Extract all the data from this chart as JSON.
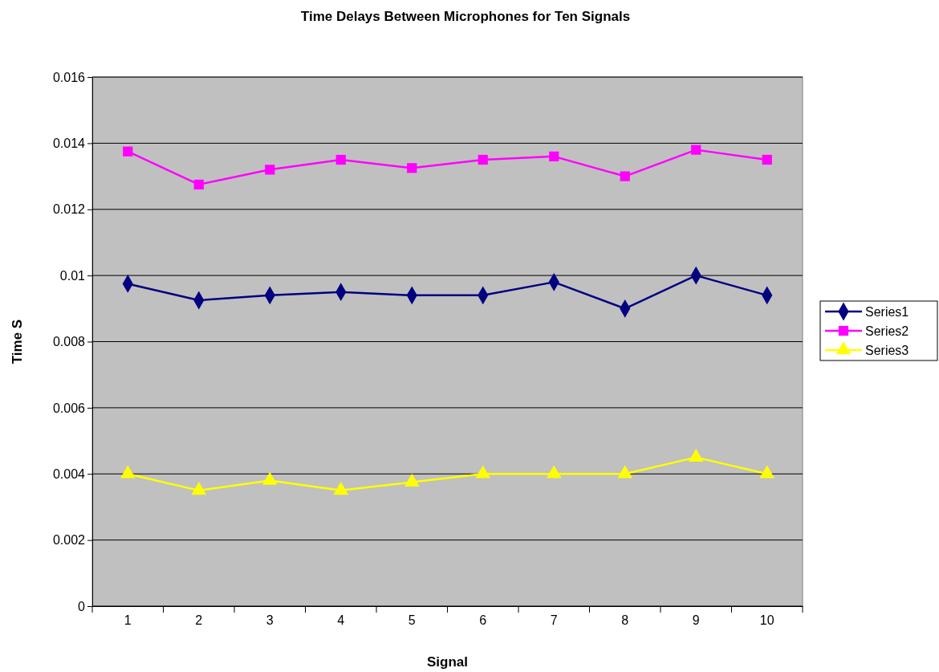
{
  "chart_data": {
    "type": "line",
    "title": "Time Delays Between Microphones for Ten Signals",
    "xlabel": "Signal",
    "ylabel": "Time S",
    "categories": [
      "1",
      "2",
      "3",
      "4",
      "5",
      "6",
      "7",
      "8",
      "9",
      "10"
    ],
    "series": [
      {
        "name": "Series1",
        "color": "#000080",
        "marker": "diamond",
        "values": [
          0.00975,
          0.00925,
          0.0094,
          0.0095,
          0.0094,
          0.0094,
          0.0098,
          0.009,
          0.01,
          0.0094
        ]
      },
      {
        "name": "Series2",
        "color": "#ff00ff",
        "marker": "square",
        "values": [
          0.01375,
          0.01275,
          0.0132,
          0.0135,
          0.01325,
          0.0135,
          0.0136,
          0.013,
          0.0138,
          0.0135
        ]
      },
      {
        "name": "Series3",
        "color": "#ffff00",
        "marker": "triangle",
        "values": [
          0.004,
          0.0035,
          0.0038,
          0.0035,
          0.00375,
          0.004,
          0.004,
          0.004,
          0.0045,
          0.004
        ]
      }
    ],
    "ylim": [
      0,
      0.016
    ],
    "yticks": [
      0,
      0.002,
      0.004,
      0.006,
      0.008,
      0.01,
      0.012,
      0.014,
      0.016
    ],
    "grid": "y",
    "legend": "right",
    "line_style": "solid"
  }
}
